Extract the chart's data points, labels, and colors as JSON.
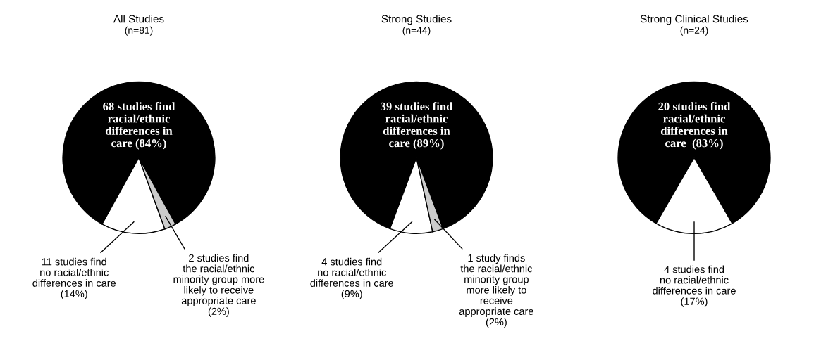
{
  "chart_data": [
    {
      "type": "pie",
      "title": "All Studies",
      "subtitle": "(n=81)",
      "categories": [
        "68 studies find\nracial/ethnic\ndifferences in\ncare (84%)",
        "11 studies find\nno racial/ethnic\ndifferences in care\n(14%)",
        "2 studies find\nthe racial/ethnic\nminority group more\nlikely to receive\nappropriate care\n(2%)"
      ],
      "values": [
        68,
        11,
        2
      ],
      "colors": [
        "#000000",
        "#ffffff",
        "#cccccc"
      ]
    },
    {
      "type": "pie",
      "title": "Strong Studies",
      "subtitle": "(n=44)",
      "categories": [
        "39 studies find\nracial/ethnic\ndifferences in\ncare (89%)",
        "4 studies find\nno racial/ethnic\ndifferences in care\n(9%)",
        "1 study finds\nthe racial/ethnic\nminority group\nmore likely to\nreceive\nappropriate care\n(2%)"
      ],
      "values": [
        39,
        4,
        1
      ],
      "colors": [
        "#000000",
        "#ffffff",
        "#cccccc"
      ]
    },
    {
      "type": "pie",
      "title": "Strong Clinical Studies",
      "subtitle": "(n=24)",
      "categories": [
        "20 studies find\nracial/ethnic\ndifferences in\ncare  (83%)",
        "4 studies find\nno racial/ethnic\ndifferences in care\n(17%)"
      ],
      "values": [
        20,
        4
      ],
      "colors": [
        "#000000",
        "#ffffff"
      ]
    }
  ]
}
